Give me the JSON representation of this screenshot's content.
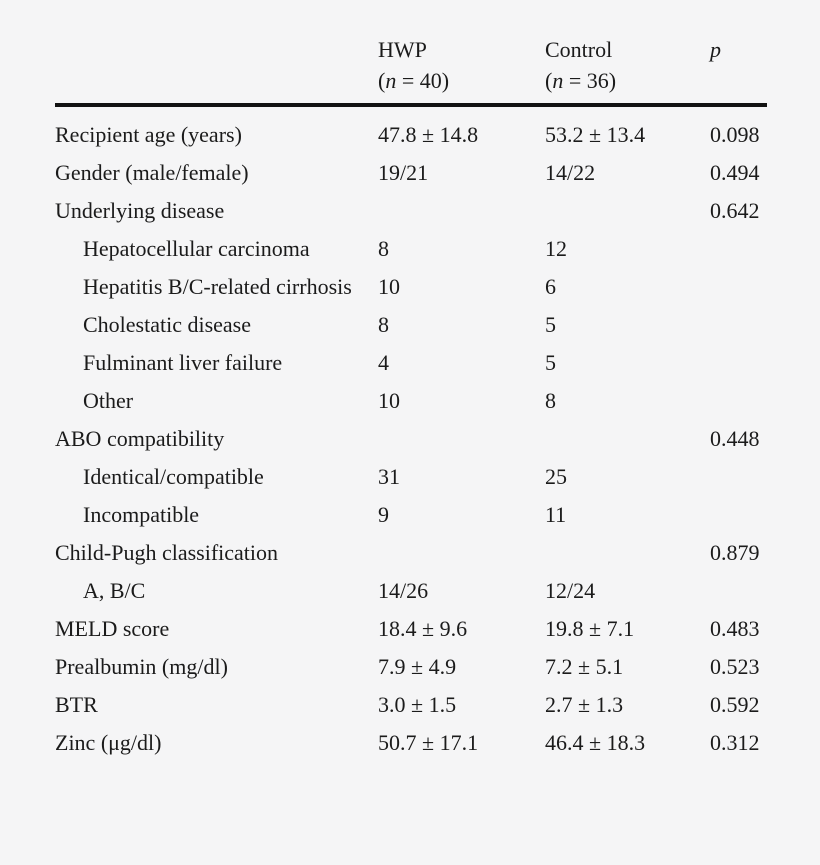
{
  "table": {
    "header": {
      "hwp": {
        "name": "HWP",
        "n_open": "(",
        "n_var": "n",
        "n_close": " = 40)"
      },
      "control": {
        "name": "Control",
        "n_open": "(",
        "n_var": "n",
        "n_close": " = 36)"
      },
      "p_label": "p"
    },
    "rows": [
      {
        "label": "Recipient age (years)",
        "indent": 0,
        "hwp": "47.8 ± 14.8",
        "control": "53.2 ± 13.4",
        "p": "0.098"
      },
      {
        "label": "Gender (male/female)",
        "indent": 0,
        "hwp": "19/21",
        "control": "14/22",
        "p": "0.494"
      },
      {
        "label": "Underlying disease",
        "indent": 0,
        "hwp": "",
        "control": "",
        "p": "0.642"
      },
      {
        "label": "Hepatocellular carcinoma",
        "indent": 1,
        "hwp": "8",
        "control": "12",
        "p": ""
      },
      {
        "label": "Hepatitis B/C-related cirrhosis",
        "indent": 1,
        "hwp": "10",
        "control": "6",
        "p": ""
      },
      {
        "label": "Cholestatic disease",
        "indent": 1,
        "hwp": "8",
        "control": "5",
        "p": ""
      },
      {
        "label": "Fulminant liver failure",
        "indent": 1,
        "hwp": "4",
        "control": "5",
        "p": ""
      },
      {
        "label": "Other",
        "indent": 1,
        "hwp": "10",
        "control": "8",
        "p": ""
      },
      {
        "label": "ABO compatibility",
        "indent": 0,
        "hwp": "",
        "control": "",
        "p": "0.448"
      },
      {
        "label": "Identical/compatible",
        "indent": 1,
        "hwp": "31",
        "control": "25",
        "p": ""
      },
      {
        "label": "Incompatible",
        "indent": 1,
        "hwp": "9",
        "control": "11",
        "p": ""
      },
      {
        "label": "Child-Pugh classification",
        "indent": 0,
        "hwp": "",
        "control": "",
        "p": "0.879"
      },
      {
        "label": "A, B/C",
        "indent": 1,
        "hwp": "14/26",
        "control": "12/24",
        "p": ""
      },
      {
        "label": "MELD score",
        "indent": 0,
        "hwp": "18.4 ± 9.6",
        "control": "19.8 ± 7.1",
        "p": "0.483"
      },
      {
        "label": "Prealbumin (mg/dl)",
        "indent": 0,
        "hwp": "7.9 ± 4.9",
        "control": "7.2 ± 5.1",
        "p": "0.523"
      },
      {
        "label": "BTR",
        "indent": 0,
        "hwp": "3.0 ± 1.5",
        "control": "2.7 ± 1.3",
        "p": "0.592"
      },
      {
        "label": "Zinc (μg/dl)",
        "indent": 0,
        "hwp": "50.7 ± 17.1",
        "control": "46.4 ± 18.3",
        "p": "0.312"
      }
    ]
  }
}
